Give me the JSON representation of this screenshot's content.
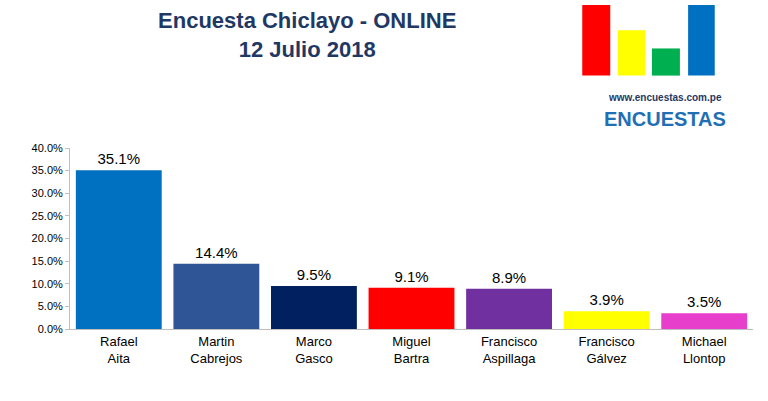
{
  "chart_data": {
    "type": "bar",
    "title": "Encuesta Chiclayo - ONLINE",
    "subtitle": "12 Julio 2018",
    "categories": [
      "Rafael Aita",
      "Martin Cabrejos",
      "Marco Gasco",
      "Miguel Bartra",
      "Francisco Aspillaga",
      "Francisco Gálvez",
      "Michael Llontop"
    ],
    "values": [
      35.1,
      14.4,
      9.5,
      9.1,
      8.9,
      3.9,
      3.5
    ],
    "value_labels": [
      "35.1%",
      "14.4%",
      "9.5%",
      "9.1%",
      "8.9%",
      "3.9%",
      "3.5%"
    ],
    "colors": [
      "#0070c0",
      "#2f5597",
      "#002060",
      "#ff0000",
      "#7030a0",
      "#ffff00",
      "#e83ecc"
    ],
    "data_labels": true,
    "ylim": [
      0,
      40
    ],
    "yticks": [
      {
        "value": 0,
        "label": "0.0%"
      },
      {
        "value": 5,
        "label": "5.0%"
      },
      {
        "value": 10,
        "label": "10.0%"
      },
      {
        "value": 15,
        "label": "15.0%"
      },
      {
        "value": 20,
        "label": "20.0%"
      },
      {
        "value": 25,
        "label": "25.0%"
      },
      {
        "value": 30,
        "label": "30.0%"
      },
      {
        "value": 35,
        "label": "35.0%"
      },
      {
        "value": 40,
        "label": "40.0%"
      }
    ],
    "grid": false,
    "annotations": [
      "www.encuestas.com.pe",
      "ENCUESTAS"
    ]
  }
}
